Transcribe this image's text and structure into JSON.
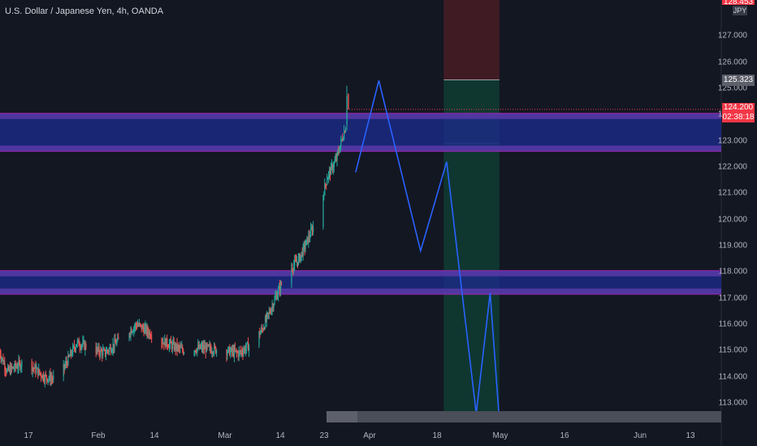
{
  "header": {
    "title": "U.S. Dollar / Japanese Yen, 4h, OANDA"
  },
  "axis": {
    "currency": "JPY",
    "top_partial_label": "128.453",
    "y_ticks": [
      "127.000",
      "126.000",
      "125.000",
      "124.000",
      "123.000",
      "122.000",
      "121.000",
      "120.000",
      "119.000",
      "118.000",
      "117.000",
      "116.000",
      "115.000",
      "114.000",
      "113.000"
    ],
    "x_ticks": [
      "17",
      "Feb",
      "14",
      "Mar",
      "14",
      "23",
      "Apr",
      "18",
      "May",
      "16",
      "Jun",
      "13"
    ]
  },
  "labels": {
    "target_price": "125.323",
    "last_price": "124.200",
    "countdown": "02:38:18"
  },
  "colors": {
    "background": "#131722",
    "zone_fill": "#1c2a8a",
    "zone_border": "#9c27b0",
    "projection": "#2962ff",
    "profit_zone": "#0f3d33",
    "loss_zone": "#4a1c24",
    "up_candle": "#26a69a",
    "down_candle": "#ef5350",
    "last_price_label": "#f23645",
    "target_label": "#5d606b"
  },
  "chart_data": {
    "type": "candlestick",
    "symbol": "USDJPY",
    "timeframe": "4h",
    "ylim": [
      112.2,
      128.45
    ],
    "price_history": {
      "anchors": [
        [
          "Jan 10",
          115.6
        ],
        [
          "Jan 13",
          114.2
        ],
        [
          "Jan 17",
          114.6
        ],
        [
          "Jan 21",
          114.0
        ],
        [
          "Jan 24",
          113.9
        ],
        [
          "Jan 28",
          115.3
        ],
        [
          "Feb 3",
          114.9
        ],
        [
          "Feb 10",
          116.0
        ],
        [
          "Feb 15",
          115.4
        ],
        [
          "Feb 20",
          115.0
        ],
        [
          "Feb 24",
          115.1
        ],
        [
          "Mar 1",
          115.0
        ],
        [
          "Mar 4",
          114.9
        ],
        [
          "Mar 7",
          115.3
        ],
        [
          "Mar 9",
          115.8
        ],
        [
          "Mar 14",
          117.9
        ],
        [
          "Mar 17",
          118.5
        ],
        [
          "Mar 21",
          120.1
        ],
        [
          "Mar 23",
          121.6
        ],
        [
          "Mar 25",
          122.3
        ],
        [
          "Mar 28",
          124.2
        ]
      ],
      "recent_high": 125.1
    },
    "zones": [
      {
        "name": "",
        "top": 124.05,
        "bottom": 122.6
      },
      {
        "name": "",
        "top": 118.05,
        "bottom": 117.15
      }
    ],
    "projection_path": [
      [
        "Mar 29",
        121.8
      ],
      [
        "Apr 3",
        125.3
      ],
      [
        "Apr 12",
        118.8
      ],
      [
        "Apr 17 15:00",
        122.2
      ],
      [
        "Apr 24",
        112.6
      ],
      [
        "Apr 27",
        117.2
      ],
      [
        "Apr 29",
        112.3
      ]
    ],
    "position": {
      "type": "short",
      "start": "Apr 17",
      "end": "Apr 29",
      "stop_loss": 128.45,
      "entry": 125.323,
      "take_profit": 112.3,
      "inner_line": 122.9
    },
    "last_price": 124.2,
    "target_price": 125.323
  }
}
